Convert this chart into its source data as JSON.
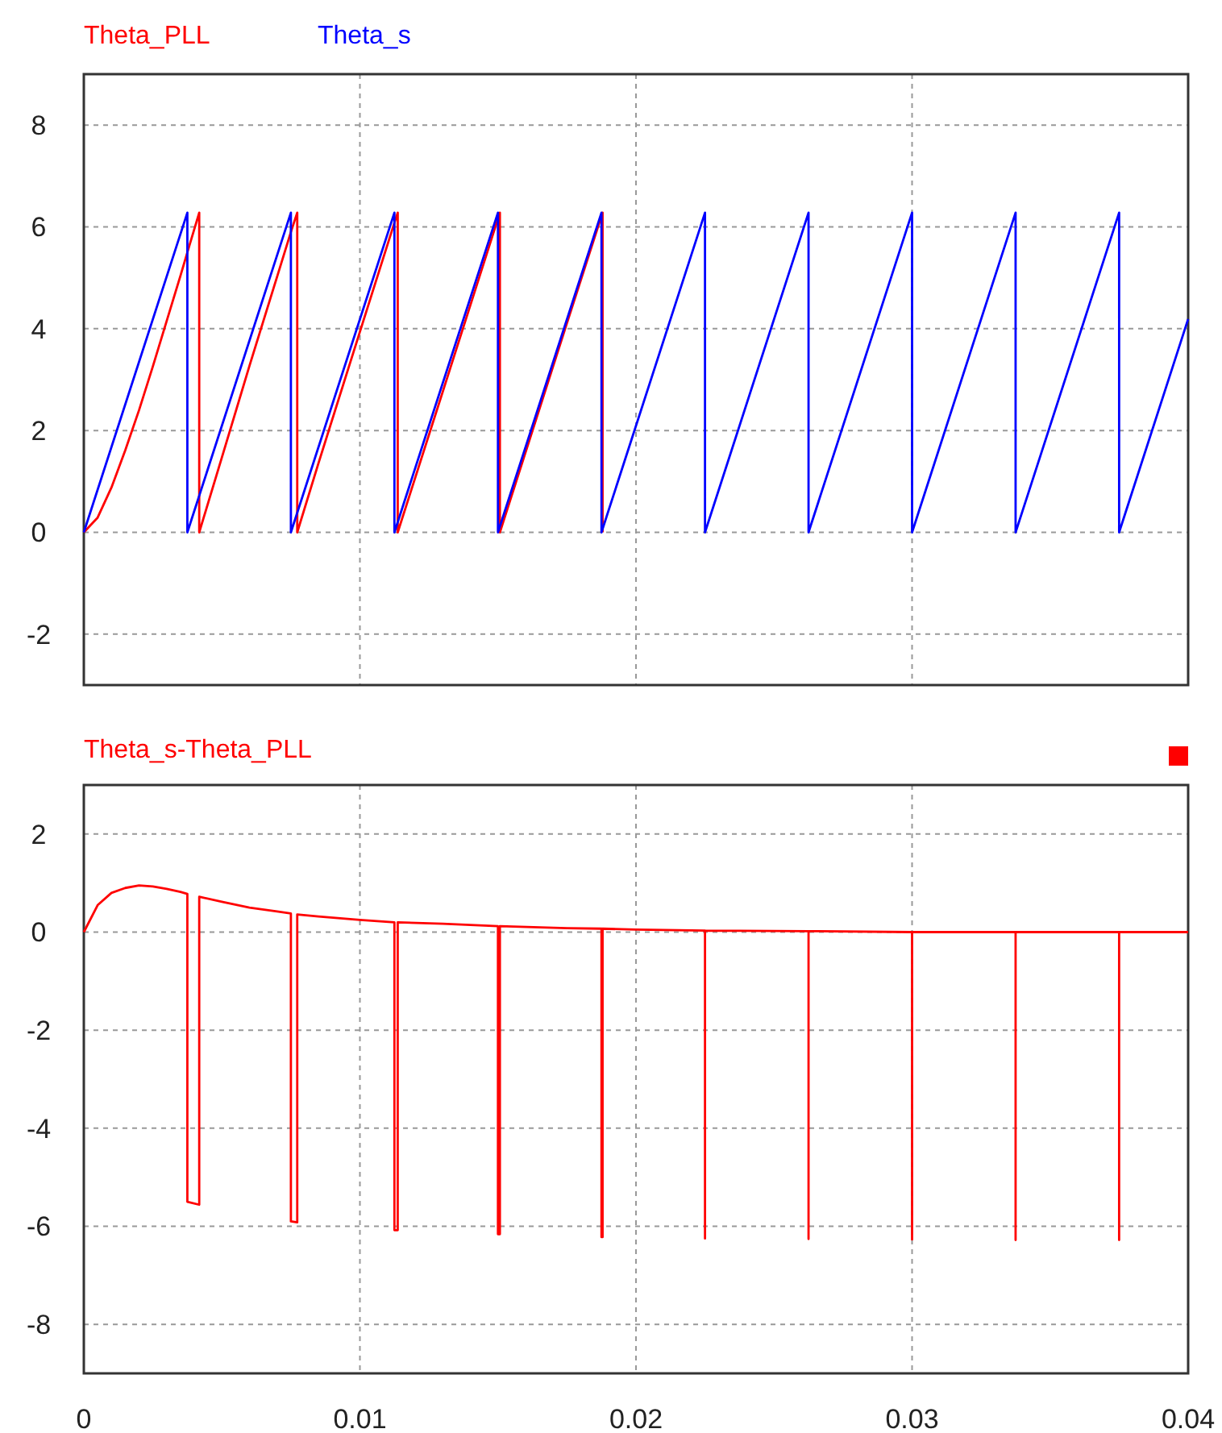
{
  "chart_data": [
    {
      "type": "line",
      "xlim": [
        0,
        0.04
      ],
      "xticks": [
        0,
        0.01,
        0.02,
        0.03,
        0.04
      ],
      "ylim": [
        -3,
        9
      ],
      "yticks": [
        -2,
        0,
        2,
        4,
        6,
        8
      ],
      "grid": true,
      "legend": "top left",
      "tick_labels": "y",
      "line_style": "solid",
      "series": [
        {
          "name": "Theta_PLL",
          "color": "#ff0000",
          "x": [
            0,
            0.0005,
            0.001,
            0.0015,
            0.002,
            0.0025,
            0.003,
            0.0035,
            0.00375,
            0.00418,
            0.00418,
            0.005,
            0.006,
            0.007,
            0.0075,
            0.00773,
            0.00773,
            0.0085,
            0.01,
            0.01125,
            0.01137,
            0.01137,
            0.013,
            0.015,
            0.01507,
            0.01507,
            0.0175,
            0.01879,
            0.01879
          ],
          "values": [
            0,
            0.29,
            0.88,
            1.61,
            2.4,
            3.26,
            4.15,
            5.04,
            5.5,
            6.28,
            0,
            1.47,
            3.27,
            5.02,
            5.9,
            6.28,
            0,
            1.36,
            3.94,
            6.08,
            6.28,
            0,
            2.76,
            6.16,
            6.28,
            0,
            4.11,
            6.28,
            0
          ]
        },
        {
          "name": "Theta_s",
          "color": "#0000ff",
          "x": [
            0,
            0.00375,
            0.00375,
            0.0075,
            0.0075,
            0.01125,
            0.01125,
            0.015,
            0.015,
            0.01875,
            0.01875,
            0.0225,
            0.0225,
            0.02625,
            0.02625,
            0.03,
            0.03,
            0.03375,
            0.03375,
            0.0375,
            0.0375,
            0.04
          ],
          "values": [
            0,
            6.28,
            0,
            6.28,
            0,
            6.28,
            0,
            6.28,
            0,
            6.28,
            0,
            6.28,
            0,
            6.28,
            0,
            6.28,
            0,
            6.28,
            0,
            6.28,
            0,
            4.19
          ]
        }
      ]
    },
    {
      "type": "line",
      "xlim": [
        0,
        0.04
      ],
      "xticks": [
        0,
        0.01,
        0.02,
        0.03,
        0.04
      ],
      "ylim": [
        -9,
        3
      ],
      "yticks": [
        -8,
        -6,
        -4,
        -2,
        0,
        2
      ],
      "grid": true,
      "legend": "top left",
      "line_style": "solid",
      "series": [
        {
          "name": "Theta_s-Theta_PLL",
          "color": "#ff0000",
          "x": [
            0,
            0.0005,
            0.001,
            0.0015,
            0.002,
            0.0025,
            0.003,
            0.0035,
            0.00375,
            0.00375,
            0.00418,
            0.00418,
            0.005,
            0.006,
            0.007,
            0.0075,
            0.0075,
            0.00773,
            0.00773,
            0.0085,
            0.01,
            0.01125,
            0.01125,
            0.01137,
            0.01137,
            0.013,
            0.015,
            0.015,
            0.01507,
            0.01507,
            0.0175,
            0.01875,
            0.01875,
            0.01879,
            0.01879,
            0.02,
            0.0225,
            0.0225,
            0.0225,
            0.02625,
            0.02625,
            0.02625,
            0.03,
            0.03,
            0.03,
            0.03375,
            0.03375,
            0.03375,
            0.0375,
            0.0375,
            0.0375,
            0.04
          ],
          "values": [
            0,
            0.55,
            0.8,
            0.9,
            0.95,
            0.93,
            0.88,
            0.82,
            0.78,
            -5.5,
            -5.56,
            0.72,
            0.62,
            0.5,
            0.42,
            0.38,
            -5.9,
            -5.92,
            0.36,
            0.32,
            0.25,
            0.2,
            -6.08,
            -6.08,
            0.2,
            0.17,
            0.12,
            -6.16,
            -6.16,
            0.12,
            0.08,
            0.07,
            -6.22,
            -6.22,
            0.07,
            0.05,
            0.03,
            -6.25,
            0.03,
            0.02,
            -6.26,
            0.02,
            0,
            -6.27,
            0,
            0,
            -6.28,
            0,
            0,
            -6.28,
            0,
            0
          ]
        }
      ]
    }
  ]
}
